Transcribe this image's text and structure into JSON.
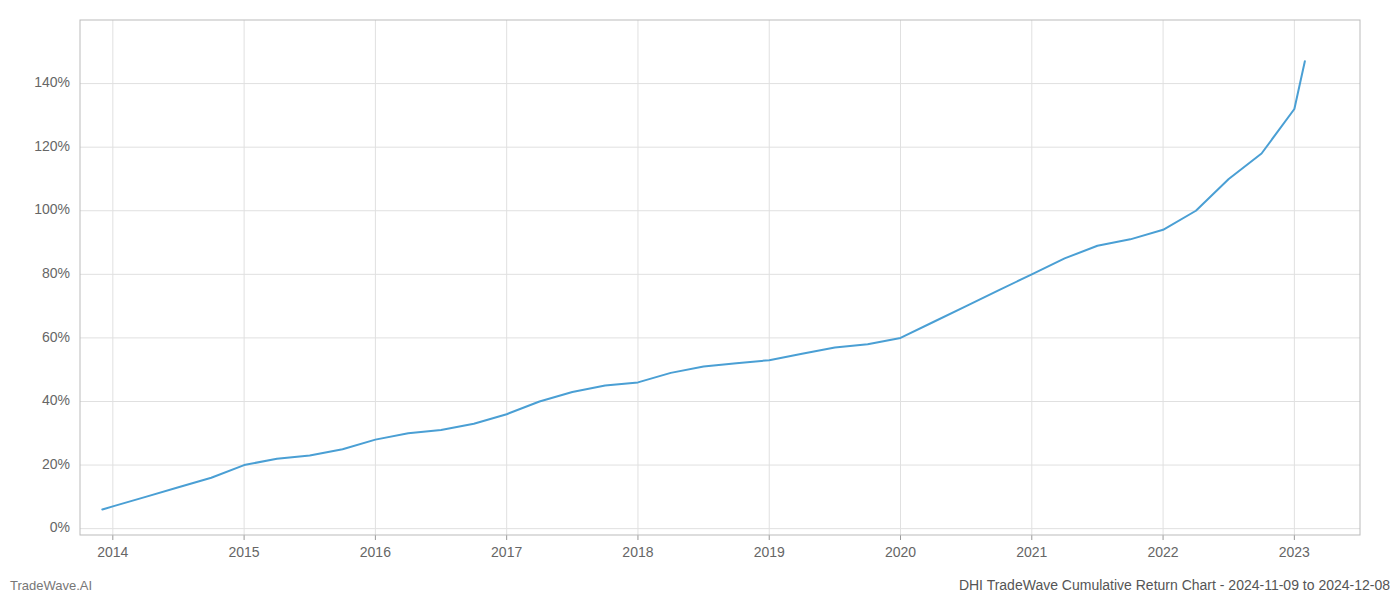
{
  "chart_data": {
    "type": "line",
    "title": "DHI TradeWave Cumulative Return Chart - 2024-11-09 to 2024-12-08",
    "annotations": [
      "TradeWave.AI"
    ],
    "x": [
      2013.92,
      2014.0,
      2014.25,
      2014.5,
      2014.75,
      2015.0,
      2015.25,
      2015.5,
      2015.75,
      2016.0,
      2016.25,
      2016.5,
      2016.75,
      2017.0,
      2017.25,
      2017.5,
      2017.75,
      2018.0,
      2018.25,
      2018.5,
      2018.75,
      2019.0,
      2019.25,
      2019.5,
      2019.75,
      2020.0,
      2020.25,
      2020.5,
      2020.75,
      2021.0,
      2021.25,
      2021.5,
      2021.75,
      2022.0,
      2022.25,
      2022.5,
      2022.75,
      2023.0,
      2023.08
    ],
    "values": [
      0.06,
      0.07,
      0.1,
      0.13,
      0.16,
      0.2,
      0.22,
      0.23,
      0.25,
      0.28,
      0.3,
      0.31,
      0.33,
      0.36,
      0.4,
      0.43,
      0.45,
      0.46,
      0.49,
      0.51,
      0.52,
      0.53,
      0.55,
      0.57,
      0.58,
      0.6,
      0.65,
      0.7,
      0.75,
      0.8,
      0.85,
      0.89,
      0.91,
      0.94,
      1.0,
      1.1,
      1.18,
      1.32,
      1.47
    ],
    "color": "#4a9fd4",
    "xlim": [
      2013.75,
      2023.5
    ],
    "ylim": [
      -0.02,
      1.6
    ],
    "xticks": [
      2014,
      2015,
      2016,
      2017,
      2018,
      2019,
      2020,
      2021,
      2022,
      2023
    ],
    "yticks": [
      {
        "value": 0.0,
        "label": "0%"
      },
      {
        "value": 0.2,
        "label": "20%"
      },
      {
        "value": 0.4,
        "label": "40%"
      },
      {
        "value": 0.6,
        "label": "60%"
      },
      {
        "value": 0.8,
        "label": "80%"
      },
      {
        "value": 1.0,
        "label": "100%"
      },
      {
        "value": 1.2,
        "label": "120%"
      },
      {
        "value": 1.4,
        "label": "140%"
      }
    ],
    "grid": true
  }
}
